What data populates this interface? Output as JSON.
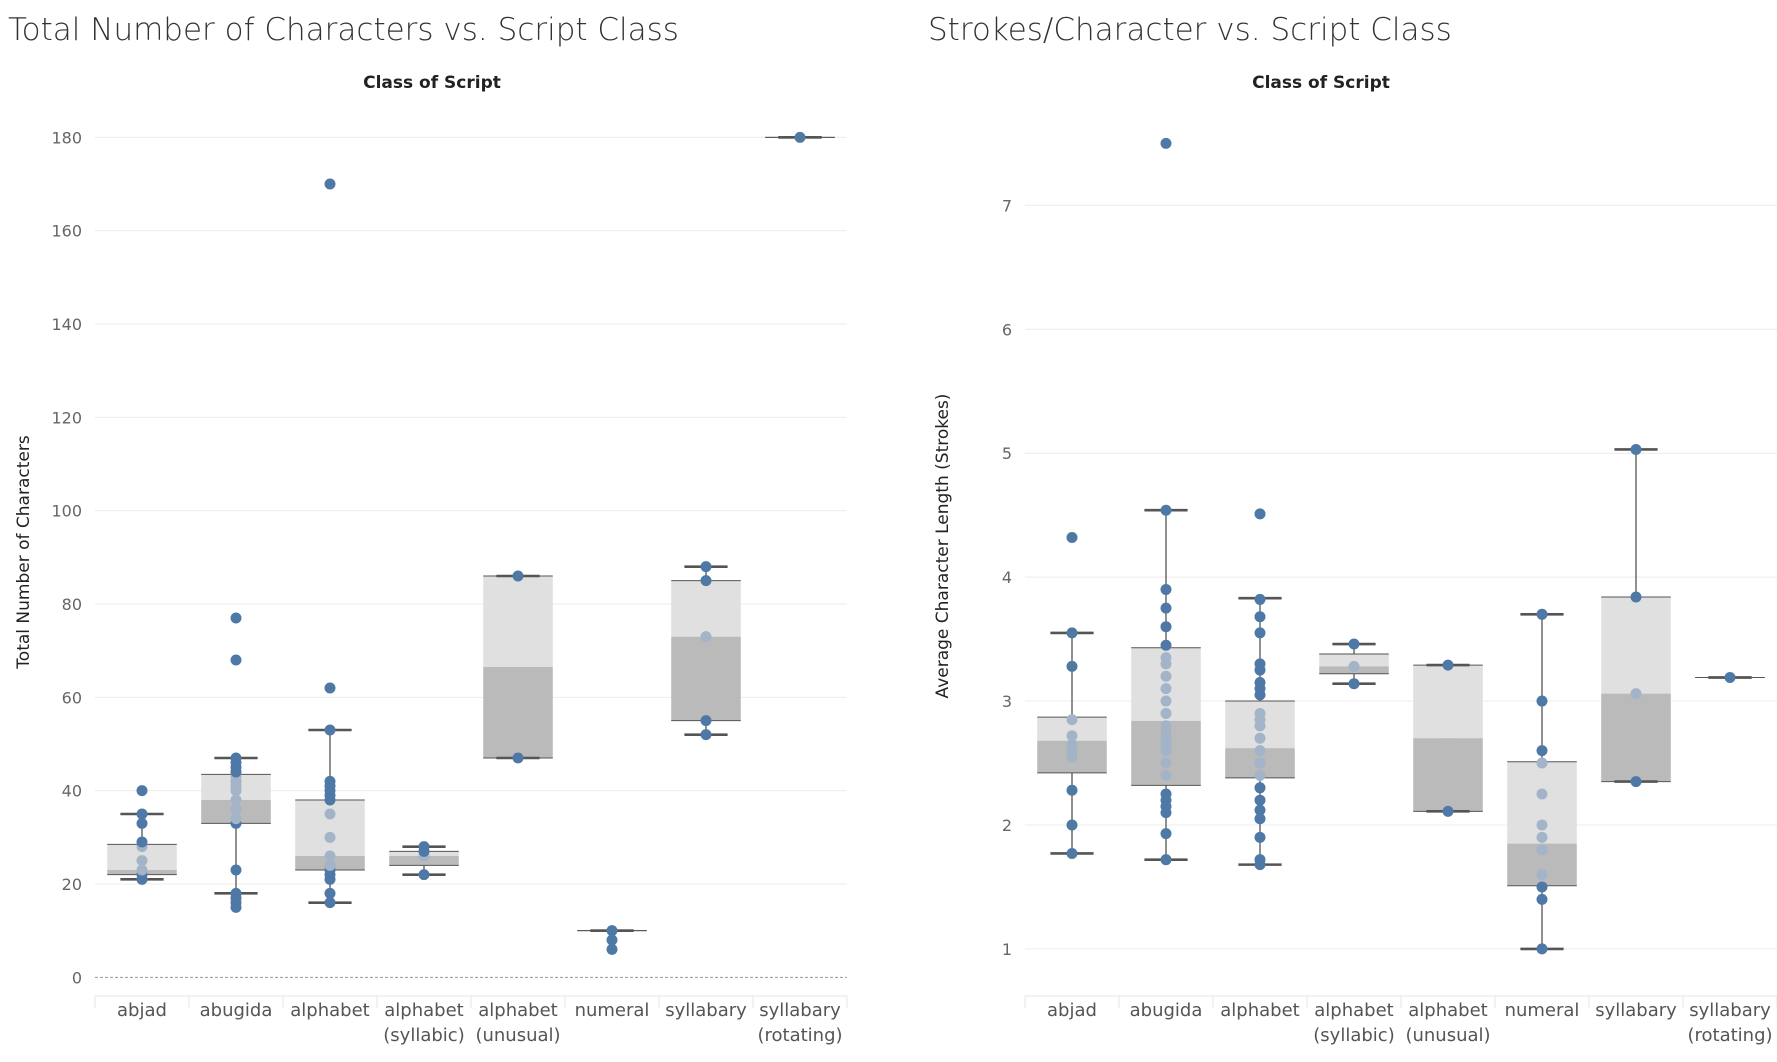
{
  "chart_data": [
    {
      "type": "box",
      "title": "Total Number of Characters vs. Script Class",
      "column_header": "Class of Script",
      "xlabel": "Class of Script",
      "ylabel": "Total Number of Characters",
      "ylim": [
        -4,
        188
      ],
      "yticks": [
        0,
        20,
        40,
        60,
        80,
        100,
        120,
        140,
        160,
        180
      ],
      "categories": [
        [
          "abjad"
        ],
        [
          "abugida"
        ],
        [
          "alphabet"
        ],
        [
          "alphabet",
          "(syllabic)"
        ],
        [
          "alphabet",
          "(unusual)"
        ],
        [
          "numeral"
        ],
        [
          "syllabary"
        ],
        [
          "syllabary",
          "(rotating)"
        ]
      ],
      "boxes": [
        {
          "whisker_low": 21,
          "q1": 22,
          "median": 23,
          "q3": 28.5,
          "whisker_high": 35
        },
        {
          "whisker_low": 18,
          "q1": 33,
          "median": 38,
          "q3": 43.5,
          "whisker_high": 47
        },
        {
          "whisker_low": 16,
          "q1": 23,
          "median": 26,
          "q3": 38,
          "whisker_high": 53
        },
        {
          "whisker_low": 22,
          "q1": 24,
          "median": 26,
          "q3": 27,
          "whisker_high": 28
        },
        {
          "whisker_low": 47,
          "q1": 47,
          "median": 66.5,
          "q3": 86,
          "whisker_high": 86
        },
        {
          "whisker_low": 10,
          "q1": 10,
          "median": 10,
          "q3": 10,
          "whisker_high": 10
        },
        {
          "whisker_low": 52,
          "q1": 55,
          "median": 73,
          "q3": 85,
          "whisker_high": 88
        },
        {
          "whisker_low": 180,
          "q1": 180,
          "median": 180,
          "q3": 180,
          "whisker_high": 180
        }
      ],
      "points": [
        [
          21,
          22,
          23,
          25,
          28,
          29,
          33,
          35,
          40
        ],
        [
          15,
          16,
          17,
          18,
          23,
          33,
          34,
          36,
          38,
          40,
          41,
          42,
          43,
          44,
          45,
          46,
          47,
          68,
          77
        ],
        [
          16,
          18,
          21,
          22,
          23,
          24,
          26,
          30,
          35,
          38,
          39,
          40,
          41,
          42,
          53,
          62,
          170
        ],
        [
          22,
          26,
          27,
          28
        ],
        [
          47,
          86
        ],
        [
          6,
          8,
          10
        ],
        [
          52,
          55,
          73,
          85,
          88
        ],
        [
          180
        ]
      ]
    },
    {
      "type": "box",
      "title": "Strokes/Character vs. Script Class",
      "column_header": "Class of Script",
      "xlabel": "Class of Script",
      "ylabel": "Average Character Length (Strokes)",
      "ylim": [
        0.62,
        7.85
      ],
      "yticks": [
        1,
        2,
        3,
        4,
        5,
        6,
        7
      ],
      "categories": [
        [
          "abjad"
        ],
        [
          "abugida"
        ],
        [
          "alphabet"
        ],
        [
          "alphabet",
          "(syllabic)"
        ],
        [
          "alphabet",
          "(unusual)"
        ],
        [
          "numeral"
        ],
        [
          "syllabary"
        ],
        [
          "syllabary",
          "(rotating)"
        ]
      ],
      "boxes": [
        {
          "whisker_low": 1.77,
          "q1": 2.42,
          "median": 2.68,
          "q3": 2.87,
          "whisker_high": 3.55
        },
        {
          "whisker_low": 1.72,
          "q1": 2.32,
          "median": 2.84,
          "q3": 3.43,
          "whisker_high": 4.54
        },
        {
          "whisker_low": 1.68,
          "q1": 2.38,
          "median": 2.62,
          "q3": 3.0,
          "whisker_high": 3.83
        },
        {
          "whisker_low": 3.14,
          "q1": 3.22,
          "median": 3.28,
          "q3": 3.38,
          "whisker_high": 3.46
        },
        {
          "whisker_low": 2.11,
          "q1": 2.11,
          "median": 2.7,
          "q3": 3.29,
          "whisker_high": 3.29
        },
        {
          "whisker_low": 1.0,
          "q1": 1.51,
          "median": 1.85,
          "q3": 2.51,
          "whisker_high": 3.7
        },
        {
          "whisker_low": 2.35,
          "q1": 2.35,
          "median": 3.06,
          "q3": 3.84,
          "whisker_high": 5.03
        },
        {
          "whisker_low": 3.19,
          "q1": 3.19,
          "median": 3.19,
          "q3": 3.19,
          "whisker_high": 3.19
        }
      ],
      "points": [
        [
          1.77,
          2.0,
          2.28,
          2.55,
          2.6,
          2.65,
          2.72,
          2.85,
          3.28,
          3.55,
          4.32
        ],
        [
          1.72,
          1.93,
          2.1,
          2.15,
          2.2,
          2.25,
          2.4,
          2.5,
          2.6,
          2.65,
          2.7,
          2.75,
          2.8,
          2.9,
          3.0,
          3.1,
          3.2,
          3.3,
          3.35,
          3.45,
          3.6,
          3.75,
          3.9,
          4.54,
          7.5
        ],
        [
          1.68,
          1.72,
          1.9,
          2.05,
          2.12,
          2.2,
          2.3,
          2.4,
          2.5,
          2.6,
          2.7,
          2.8,
          2.85,
          2.9,
          3.05,
          3.1,
          3.15,
          3.25,
          3.3,
          3.55,
          3.68,
          3.82,
          4.51
        ],
        [
          3.14,
          3.28,
          3.46
        ],
        [
          2.11,
          3.29
        ],
        [
          1.0,
          1.4,
          1.5,
          1.6,
          1.8,
          1.9,
          2.0,
          2.25,
          2.5,
          2.6,
          3.0,
          3.7
        ],
        [
          2.35,
          3.06,
          3.84,
          5.03
        ],
        [
          3.19
        ]
      ]
    }
  ],
  "colors": {
    "point": "#4e79a7",
    "point_inside": "#a3b4c8",
    "box_upper": "#e0e0e0",
    "box_lower": "#bababa",
    "whisker": "#555555",
    "grid": "#ececec",
    "zero_line": "#999999"
  }
}
